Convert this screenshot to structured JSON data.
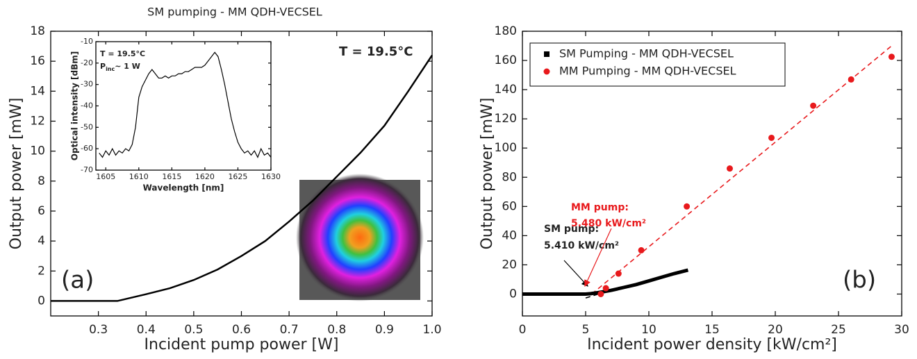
{
  "chart_data": [
    {
      "type": "line",
      "title": "SM pumping - MM QDH-VECSEL",
      "x_label": "Incident pump power [W]",
      "y_label": "Output power [mW]",
      "x": [
        0.2,
        0.34,
        0.4,
        0.45,
        0.5,
        0.55,
        0.6,
        0.65,
        0.7,
        0.75,
        0.8,
        0.85,
        0.9,
        0.95,
        1.0
      ],
      "values": [
        0,
        0,
        0.45,
        0.85,
        1.4,
        2.1,
        3.0,
        4.0,
        5.3,
        6.7,
        8.3,
        9.9,
        11.7,
        14.0,
        16.4
      ],
      "color": "#000000",
      "xlim": [
        0.2,
        1.0
      ],
      "ylim": [
        -1,
        18
      ],
      "xticks": [
        0.3,
        0.4,
        0.5,
        0.6,
        0.7,
        0.8,
        0.9,
        {
          "value": 1,
          "label": "1.0"
        }
      ],
      "yticks": [
        0,
        2,
        4,
        6,
        8,
        10,
        12,
        14,
        16,
        18
      ],
      "annotations": [
        "T = 19.5°C",
        "(a)"
      ]
    },
    {
      "type": "line",
      "x_label": "Wavelength [nm]",
      "y_label": "Optical intensity [dBm]",
      "x": [
        1604,
        1604.5,
        1605,
        1605.5,
        1606,
        1606.5,
        1607,
        1607.5,
        1608,
        1608.5,
        1609,
        1609.5,
        1610,
        1610.5,
        1611,
        1611.5,
        1612,
        1612.5,
        1613,
        1613.5,
        1614,
        1614.5,
        1615,
        1615.5,
        1616,
        1616.5,
        1617,
        1617.5,
        1618,
        1618.5,
        1619,
        1619.5,
        1620,
        1620.5,
        1621,
        1621.5,
        1622,
        1622.5,
        1623,
        1623.5,
        1624,
        1624.5,
        1625,
        1625.5,
        1626,
        1626.5,
        1627,
        1627.5,
        1628,
        1628.5,
        1629,
        1629.5,
        1630
      ],
      "values": [
        -62,
        -64,
        -61,
        -63,
        -60,
        -63,
        -61,
        -62,
        -60,
        -61,
        -58,
        -50,
        -36,
        -31,
        -28,
        -25,
        -23,
        -25,
        -27,
        -27,
        -26,
        -27,
        -26,
        -26,
        -25,
        -25,
        -24,
        -24,
        -23,
        -22,
        -22,
        -22,
        -21,
        -19,
        -17,
        -15,
        -17,
        -23,
        -30,
        -38,
        -46,
        -52,
        -57,
        -60,
        -62,
        -61,
        -63,
        -61,
        -64,
        -60,
        -63,
        -62,
        -64
      ],
      "color": "#000000",
      "xlim": [
        1603.5,
        1630
      ],
      "ylim": [
        -70,
        -10
      ],
      "xticks": [
        1605,
        1610,
        1615,
        1620,
        1625,
        1630
      ],
      "yticks": [
        -10,
        -20,
        -30,
        -40,
        -50,
        -60,
        -70
      ],
      "annotations": [
        "T = 19.5°C",
        {
          "text": "P",
          "subscript": "inc",
          "suffix": "~ 1 W"
        }
      ]
    },
    {
      "type": "scatter",
      "x_label": "Incident power density [kW/cm²]",
      "y_label": "Output power [mW]",
      "xlim": [
        0,
        30
      ],
      "ylim": [
        -15,
        180
      ],
      "xticks": [
        0,
        5,
        10,
        15,
        20,
        25,
        30
      ],
      "yticks": [
        0,
        20,
        40,
        60,
        80,
        100,
        120,
        140,
        160,
        180
      ],
      "legend": "upper left",
      "series": [
        {
          "name": "SM Pumping - MM QDH-VECSEL",
          "color": "#000000",
          "marker": "square",
          "draw": "line",
          "x": [
            0,
            5,
            5.4,
            6,
            7,
            8,
            9,
            10,
            11,
            12,
            13.1
          ],
          "values": [
            0,
            0,
            0.3,
            1,
            2.5,
            4.5,
            6.5,
            9,
            11.5,
            14,
            16.4
          ]
        },
        {
          "name": "MM Pumping - MM QDH-VECSEL",
          "color": "#e8191c",
          "marker": "circle",
          "draw": "markers",
          "x": [
            6.2,
            6.6,
            7.6,
            9.4,
            13,
            16.4,
            19.7,
            23,
            26,
            29.2
          ],
          "values": [
            0,
            4,
            14,
            30,
            60,
            86,
            107,
            129,
            147,
            162.5
          ]
        }
      ],
      "fits": [
        {
          "color": "#000000",
          "dashed": true,
          "x": [
            5.0,
            6.6
          ],
          "values": [
            -2.7,
            1.6
          ]
        },
        {
          "color": "#e8191c",
          "dashed": true,
          "x": [
            5.48,
            29.2
          ],
          "values": [
            0,
            170
          ]
        }
      ],
      "annotations": [
        "SM pump:",
        "5.410 kW/cm²",
        "MM pump:",
        "5.480 kW/cm²",
        "(b)"
      ]
    }
  ]
}
